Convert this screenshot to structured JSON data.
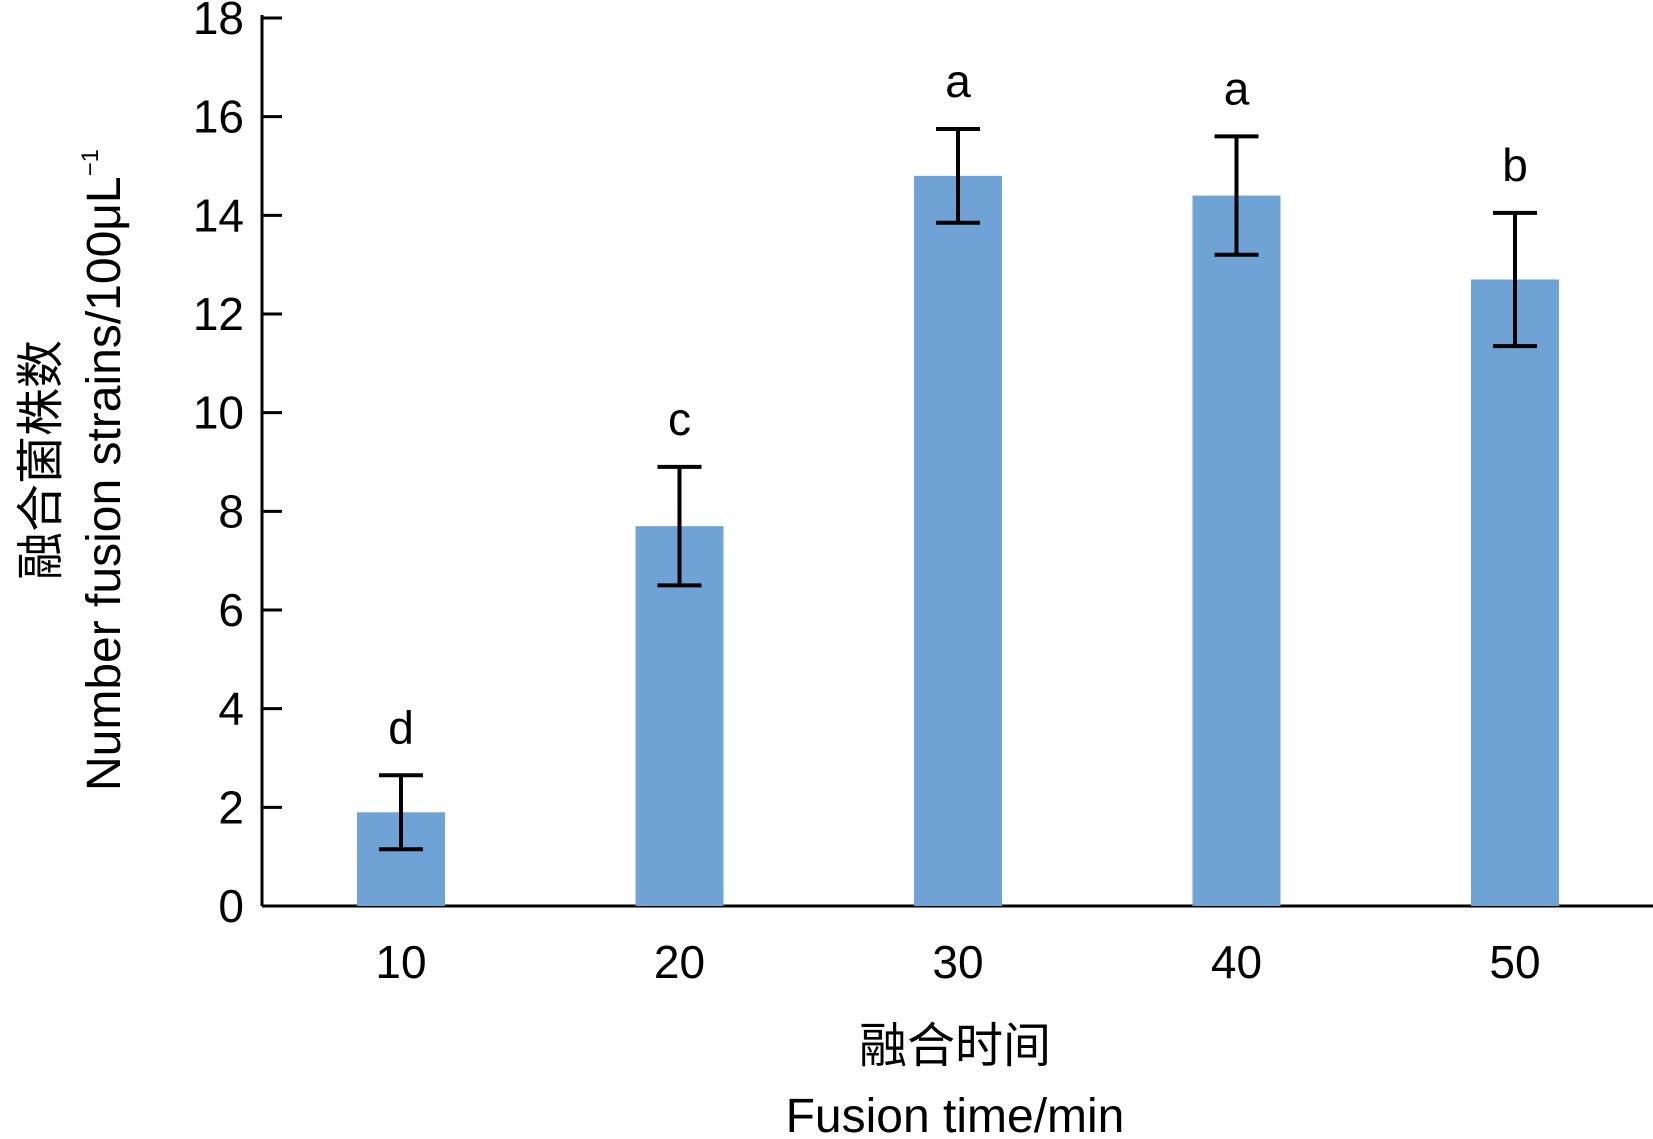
{
  "chart_data": {
    "type": "bar",
    "categories": [
      "10",
      "20",
      "30",
      "40",
      "50"
    ],
    "values": [
      1.9,
      7.7,
      14.8,
      14.4,
      12.7
    ],
    "error": [
      0.75,
      1.2,
      0.95,
      1.2,
      1.35
    ],
    "significance": [
      "d",
      "c",
      "a",
      "a",
      "b"
    ],
    "bar_color": "#6fa3d6",
    "xlabel_cn": "融合时间",
    "xlabel_en": "Fusion time/min",
    "ylabel_cn": "融合菌株数",
    "ylabel_en": "Number fusion strains/100μL",
    "ylabel_sup": "−1",
    "ylim": [
      0,
      18
    ],
    "yticks": [
      "0",
      "2",
      "4",
      "6",
      "8",
      "10",
      "12",
      "14",
      "16",
      "18"
    ],
    "grid": false,
    "legend": "none"
  }
}
